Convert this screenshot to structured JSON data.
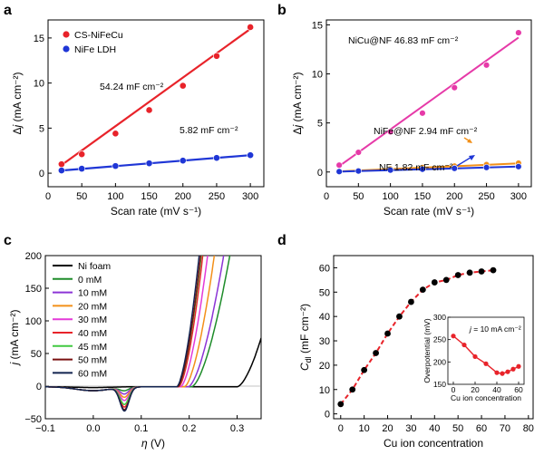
{
  "chart_data": [
    {
      "panel": "a",
      "type": "scatter",
      "xlabel": "Scan rate (mV s⁻¹)",
      "ylabel": "Δj (mA cm⁻²)",
      "xlim": [
        0,
        320
      ],
      "ylim": [
        -1.5,
        17
      ],
      "xticks": [
        0,
        50,
        100,
        150,
        200,
        250,
        300
      ],
      "yticks": [
        0,
        5,
        10,
        15
      ],
      "legend_position": "top-left",
      "series": [
        {
          "name": "CS-NiFeCu",
          "color": "#e8232a",
          "x": [
            20,
            50,
            100,
            150,
            200,
            250,
            300
          ],
          "y": [
            1.0,
            2.1,
            4.4,
            7.0,
            9.7,
            13.0,
            16.2
          ],
          "fit": [
            [
              20,
              0.9
            ],
            [
              300,
              16.0
            ]
          ],
          "annotation": "54.24 mF cm⁻²"
        },
        {
          "name": "NiFe LDH",
          "color": "#1f36d6",
          "x": [
            20,
            50,
            100,
            150,
            200,
            250,
            300
          ],
          "y": [
            0.3,
            0.5,
            0.8,
            1.1,
            1.4,
            1.7,
            2.0
          ],
          "fit": [
            [
              20,
              0.3
            ],
            [
              300,
              2.0
            ]
          ],
          "annotation": "5.82 mF cm⁻²"
        }
      ]
    },
    {
      "panel": "b",
      "type": "scatter",
      "xlabel": "Scan rate (mV s⁻¹)",
      "ylabel": "Δj (mA cm⁻²)",
      "xlim": [
        0,
        320
      ],
      "ylim": [
        -1.5,
        15.5
      ],
      "xticks": [
        0,
        50,
        100,
        150,
        200,
        250,
        300
      ],
      "yticks": [
        0,
        5,
        10,
        15
      ],
      "series": [
        {
          "name": "NiCu@NF",
          "color": "#e63aa8",
          "x": [
            20,
            50,
            100,
            150,
            200,
            250,
            300
          ],
          "y": [
            0.7,
            2.0,
            4.1,
            6.0,
            8.6,
            10.9,
            14.2
          ],
          "fit": [
            [
              20,
              0.6
            ],
            [
              300,
              13.7
            ]
          ],
          "annotation": "NiCu@NF 46.83 mF cm⁻²"
        },
        {
          "name": "NiFe@NF",
          "color": "#f29019",
          "x": [
            20,
            50,
            100,
            150,
            200,
            250,
            300
          ],
          "y": [
            0.06,
            0.15,
            0.3,
            0.45,
            0.6,
            0.75,
            0.9
          ],
          "fit": [
            [
              20,
              0.06
            ],
            [
              300,
              0.88
            ]
          ],
          "annotation": "NiFe@NF 2.94 mF cm⁻²"
        },
        {
          "name": "NF",
          "color": "#1f36d6",
          "x": [
            20,
            50,
            100,
            150,
            200,
            250,
            300
          ],
          "y": [
            0.04,
            0.1,
            0.19,
            0.28,
            0.37,
            0.46,
            0.55
          ],
          "fit": [
            [
              20,
              0.04
            ],
            [
              300,
              0.55
            ]
          ],
          "annotation": "NF 1.82 mF cm⁻²"
        }
      ]
    },
    {
      "panel": "c",
      "type": "line",
      "xlabel": "η (V)",
      "ylabel": "j (mA cm⁻²)",
      "xlim": [
        -0.1,
        0.35
      ],
      "ylim": [
        -50,
        200
      ],
      "xticks": [
        -0.1,
        0.0,
        0.1,
        0.2,
        0.3
      ],
      "yticks": [
        -50,
        0,
        50,
        100,
        150,
        200
      ],
      "legend_position": "top-left",
      "series": [
        {
          "name": "Ni foam",
          "color": "#000000",
          "onset": 0.3,
          "steep": 900,
          "dip": 0
        },
        {
          "name": "0 mM",
          "color": "#1e8c2a",
          "onset": 0.205,
          "steep": 1150,
          "dip": -5
        },
        {
          "name": "10 mM",
          "color": "#8c34d6",
          "onset": 0.198,
          "steep": 1300,
          "dip": -10
        },
        {
          "name": "20 mM",
          "color": "#f39019",
          "onset": 0.19,
          "steep": 1700,
          "dip": -15
        },
        {
          "name": "30 mM",
          "color": "#e43ad8",
          "onset": 0.182,
          "steep": 2000,
          "dip": -20
        },
        {
          "name": "40 mM",
          "color": "#e8232a",
          "onset": 0.178,
          "steep": 2400,
          "dip": -30
        },
        {
          "name": "45 mM",
          "color": "#40c940",
          "onset": 0.176,
          "steep": 2500,
          "dip": -26
        },
        {
          "name": "50 mM",
          "color": "#7a1010",
          "onset": 0.176,
          "steep": 2600,
          "dip": -34
        },
        {
          "name": "60 mM",
          "color": "#12234f",
          "onset": 0.174,
          "steep": 2700,
          "dip": -36
        }
      ]
    },
    {
      "panel": "d",
      "type": "line",
      "xlabel": "Cu ion concentration",
      "ylabel": "C_dl (mF cm⁻²)",
      "xlim": [
        -3,
        82
      ],
      "ylim": [
        -2,
        65
      ],
      "xticks": [
        0,
        10,
        20,
        30,
        40,
        50,
        60,
        70,
        80
      ],
      "yticks": [
        0,
        10,
        20,
        30,
        40,
        50,
        60
      ],
      "series": [
        {
          "name": "C_dl",
          "point_color": "#000000",
          "line_color": "#e8232a",
          "x": [
            0,
            5,
            10,
            15,
            20,
            25,
            30,
            35,
            40,
            45,
            50,
            55,
            60,
            65
          ],
          "y": [
            4,
            10,
            18,
            25,
            33,
            40,
            46,
            51,
            54,
            55,
            57,
            58,
            58.5,
            59
          ]
        }
      ],
      "inset": {
        "type": "line",
        "xlabel": "Cu ion concentration",
        "ylabel": "Overpotential (mV)",
        "annotation": "j = 10 mA cm⁻²",
        "xlim": [
          -5,
          65
        ],
        "ylim": [
          150,
          300
        ],
        "xticks": [
          0,
          20,
          40,
          60
        ],
        "yticks": [
          150,
          200,
          250,
          300
        ],
        "color": "#e8232a",
        "x": [
          0,
          10,
          20,
          30,
          40,
          45,
          50,
          55,
          60
        ],
        "y": [
          258,
          238,
          212,
          196,
          176,
          174,
          178,
          184,
          190
        ]
      }
    }
  ]
}
